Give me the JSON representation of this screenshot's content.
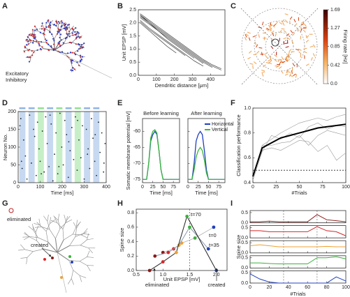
{
  "chart_data": [
    {
      "type": "illustration",
      "panel_label": "A",
      "legend": [
        {
          "name": "Excitatory",
          "color": "#2b3bbf"
        },
        {
          "name": "Inhibitory",
          "color": "#d42a2a"
        }
      ]
    },
    {
      "type": "line",
      "panel_label": "B",
      "xlabel": "Dendritic distance [μm]",
      "ylabel": "Unit EPSP [mV]",
      "xlim": [
        0,
        480
      ],
      "ylim": [
        0,
        2.5
      ],
      "xticks": [
        0,
        100,
        200,
        300,
        400
      ],
      "yticks": [
        {
          "value": 0,
          "label": "0.0"
        },
        0.5,
        {
          "value": 1,
          "label": "1.0"
        },
        1.5,
        {
          "value": 2,
          "label": "2.0"
        },
        2.5
      ],
      "color": "#222",
      "x": [
        10,
        60,
        110,
        160,
        210,
        260,
        310,
        360,
        410,
        460
      ],
      "series": [
        {
          "values": [
            2.3,
            2.0,
            1.75,
            1.5,
            1.25,
            1.0,
            0.75,
            0.5,
            0.3,
            null
          ]
        },
        {
          "values": [
            2.2,
            1.95,
            1.7,
            1.45,
            1.2,
            0.95,
            0.7,
            0.45,
            null,
            null
          ]
        },
        {
          "values": [
            2.35,
            2.1,
            1.85,
            1.6,
            1.35,
            1.1,
            0.85,
            0.6,
            0.4,
            0.25
          ]
        },
        {
          "values": [
            2.1,
            1.8,
            1.55,
            1.3,
            1.05,
            0.8,
            0.55,
            0.35,
            null,
            null
          ]
        },
        {
          "values": [
            2.25,
            2.0,
            1.7,
            1.4,
            1.15,
            0.9,
            0.65,
            null,
            null,
            null
          ]
        },
        {
          "values": [
            2.05,
            1.75,
            1.5,
            1.25,
            1.0,
            0.75,
            null,
            null,
            null,
            null
          ]
        },
        {
          "values": [
            2.3,
            2.05,
            1.8,
            1.55,
            1.3,
            1.05,
            0.8,
            0.55,
            0.35,
            0.2
          ]
        },
        {
          "values": [
            2.0,
            1.7,
            1.4,
            1.1,
            0.85,
            null,
            null,
            null,
            null,
            null
          ]
        }
      ]
    },
    {
      "type": "illustration",
      "panel_label": "C",
      "colorbar": {
        "label": "Firing rate [Hz]",
        "lim": [
          0,
          1.69
        ],
        "ticks": [
          {
            "value": 0,
            "label": "0.0"
          },
          0.42,
          0.85,
          1.27,
          1.69
        ]
      }
    },
    {
      "type": "raster",
      "panel_label": "D",
      "xlabel": "Time [ms]",
      "ylabel": "Neuron No.",
      "xlim": [
        0,
        400
      ],
      "ylim": [
        0,
        200
      ],
      "xticks": [
        0,
        100,
        200,
        300,
        400
      ],
      "yticks": [
        0,
        50,
        100,
        150,
        200
      ],
      "stimuli": [
        {
          "start": 5,
          "end": 33,
          "color": "#8fb3e3"
        },
        {
          "start": 47,
          "end": 75,
          "color": "#8fb3e3"
        },
        {
          "start": 89,
          "end": 117,
          "color": "#8fe08f"
        },
        {
          "start": 131,
          "end": 159,
          "color": "#8fb3e3"
        },
        {
          "start": 173,
          "end": 201,
          "color": "#8fe08f"
        },
        {
          "start": 215,
          "end": 243,
          "color": "#8fb3e3"
        },
        {
          "start": 257,
          "end": 285,
          "color": "#8fe08f"
        },
        {
          "start": 299,
          "end": 327,
          "color": "#8fb3e3"
        },
        {
          "start": 341,
          "end": 369,
          "color": "#8fb3e3"
        }
      ],
      "spikes": {
        "x": [
          12,
          18,
          25,
          33,
          8,
          40,
          52,
          60,
          75,
          82,
          88,
          95,
          100,
          110,
          118,
          125,
          132,
          140,
          150,
          158,
          165,
          172,
          180,
          190,
          198,
          205,
          212,
          220,
          228,
          236,
          244,
          252,
          260,
          268,
          276,
          285,
          292,
          300,
          310,
          318,
          325,
          333,
          340,
          348,
          356,
          365,
          372,
          380,
          388,
          395,
          15,
          70,
          105,
          145,
          185,
          230,
          270,
          315,
          350,
          390
        ],
        "y": [
          180,
          40,
          120,
          75,
          160,
          10,
          190,
          55,
          130,
          20,
          170,
          95,
          60,
          145,
          30,
          185,
          110,
          45,
          165,
          5,
          80,
          140,
          25,
          195,
          100,
          50,
          175,
          135,
          15,
          90,
          155,
          65,
          185,
          35,
          120,
          70,
          160,
          10,
          150,
          95,
          40,
          180,
          125,
          60,
          20,
          170,
          85,
          140,
          30,
          110,
          60,
          150,
          25,
          190,
          45,
          115,
          175,
          80,
          135,
          55
        ]
      }
    },
    {
      "type": "line",
      "panel_label": "E",
      "ylabel": "Somatic membrane potential [mV]",
      "xlim": [
        0,
        90
      ],
      "ylim": [
        -76,
        -56
      ],
      "xticks": [
        0,
        25,
        50,
        75
      ],
      "yticks": [
        -75,
        -70,
        -65,
        -60
      ],
      "subplots": [
        {
          "title": "Before learning",
          "xlabel": "Time [ms]",
          "x": [
            0,
            10,
            15,
            20,
            25,
            30,
            35,
            40,
            45,
            50,
            60,
            75,
            90
          ],
          "series": [
            {
              "color": "#1f3fbf",
              "values": [
                -75,
                -75,
                -70,
                -63,
                -61,
                -60,
                -61,
                -66,
                -72,
                -75,
                -75,
                -75,
                -75
              ]
            },
            {
              "color": "#3cb83c",
              "values": [
                -75,
                -75,
                -70,
                -62,
                -60,
                -59.5,
                -60.5,
                -66,
                -72,
                -75,
                -75,
                -75,
                -75
              ]
            }
          ]
        },
        {
          "title": "After learning",
          "xlabel": "Time [ms]",
          "x": [
            0,
            10,
            15,
            20,
            25,
            30,
            35,
            40,
            45,
            50,
            60,
            75,
            90
          ],
          "series": [
            {
              "name": "Horizontal",
              "color": "#1f3fbf",
              "values": [
                -75,
                -75,
                -70,
                -63,
                -61,
                -60,
                -61,
                -66,
                -72,
                -75,
                -75,
                -75,
                -75
              ]
            },
            {
              "name": "Vertical",
              "color": "#3cb83c",
              "values": [
                -75,
                -75,
                -72,
                -68,
                -66,
                -65,
                -66,
                -69,
                -73,
                -75,
                -75,
                -75,
                -75
              ]
            }
          ]
        }
      ]
    },
    {
      "type": "line",
      "panel_label": "F",
      "xlabel": "#Trials",
      "ylabel": "Classification performance",
      "xlim": [
        0,
        100
      ],
      "ylim": [
        0.4,
        1.0
      ],
      "xticks": [
        0,
        25,
        50,
        75,
        100
      ],
      "yticks": [
        0.4,
        0.6,
        0.8,
        {
          "value": 1,
          "label": "1.0"
        }
      ],
      "baseline": 0.5,
      "x": [
        0,
        10,
        20,
        30,
        40,
        50,
        60,
        70,
        80,
        90,
        100
      ],
      "series": [
        {
          "color": "#999999",
          "values": [
            0.45,
            0.7,
            0.75,
            0.8,
            0.84,
            0.88,
            0.9,
            0.92,
            0.9,
            0.93,
            0.95
          ]
        },
        {
          "color": "#999999",
          "values": [
            0.42,
            0.65,
            0.78,
            0.75,
            0.8,
            0.76,
            0.85,
            0.88,
            0.83,
            0.86,
            0.85
          ]
        },
        {
          "color": "#999999",
          "values": [
            0.44,
            0.7,
            0.7,
            0.72,
            0.73,
            0.78,
            0.7,
            0.78,
            0.82,
            0.8,
            0.78
          ]
        },
        {
          "color": "#999999",
          "values": [
            0.46,
            0.66,
            0.68,
            0.66,
            0.7,
            0.74,
            0.73,
            0.65,
            0.7,
            0.58,
            0.64
          ]
        },
        {
          "color": "#000000",
          "values": [
            0.45,
            0.68,
            0.72,
            0.76,
            0.78,
            0.8,
            0.82,
            0.84,
            0.85,
            0.86,
            0.87
          ]
        }
      ]
    },
    {
      "type": "illustration",
      "panel_label": "G",
      "annotations": [
        "eliminated",
        "created"
      ]
    },
    {
      "type": "scatter",
      "panel_label": "H",
      "xlabel": "Unit EPSP [mV]",
      "ylabel": "Spine size",
      "xlim": [
        0.5,
        2.2
      ],
      "ylim": [
        0,
        0.85
      ],
      "xticks": [
        0.5,
        {
          "value": 1,
          "label": "1.0"
        },
        1.5,
        {
          "value": 2,
          "label": "2.0"
        }
      ],
      "yticks": [
        {
          "value": 0,
          "label": "0.0"
        },
        0.2,
        0.4,
        0.6,
        0.8
      ],
      "vline": 1.5,
      "spine_colors": [
        "#8b1a1a",
        "#d62728",
        "#f0a030",
        "#3cb03c",
        "#2040c0"
      ],
      "series": [
        {
          "name": "t=0",
          "color": "#bbbbbb",
          "x": [
            1.0,
            1.2,
            1.35,
            1.6,
            1.95
          ],
          "values": [
            0.25,
            0.3,
            0.38,
            0.45,
            0.6
          ]
        },
        {
          "name": "t=35",
          "color": "#8a9ab0",
          "x": [
            0.85,
            1.1,
            1.3,
            1.5,
            1.85
          ],
          "values": [
            0.2,
            0.25,
            0.35,
            0.6,
            0.3
          ]
        },
        {
          "name": "t=70",
          "color": "#222222",
          "x": [
            0.75,
            1.0,
            1.25,
            1.45,
            2.0
          ],
          "values": [
            0.0,
            0.12,
            0.25,
            0.75,
            0.0
          ]
        }
      ],
      "annotations": [
        "eliminated",
        "created"
      ]
    },
    {
      "type": "line",
      "panel_label": "I",
      "xlabel": "#Trials",
      "ylabel": "Spine size",
      "xlim": [
        0,
        100
      ],
      "ylim": [
        0,
        0.6
      ],
      "xticks": [
        0,
        20,
        40,
        60,
        80,
        100
      ],
      "yticks": [
        {
          "value": 0,
          "label": "0.0"
        },
        0.5
      ],
      "vlines": [
        35,
        70
      ],
      "x": [
        0,
        10,
        20,
        30,
        40,
        50,
        60,
        70,
        80,
        90,
        100
      ],
      "series": [
        {
          "color": "#8b1a1a",
          "values": [
            0.05,
            0.05,
            0.08,
            0.05,
            0.05,
            0.05,
            0.05,
            0.4,
            0.15,
            0.1,
            0.05
          ]
        },
        {
          "color": "#d62728",
          "values": [
            0.35,
            0.35,
            0.3,
            0.3,
            0.3,
            0.3,
            0.3,
            0.55,
            0.35,
            0.3,
            0.1
          ]
        },
        {
          "color": "#f0a030",
          "values": [
            0.35,
            0.4,
            0.35,
            0.3,
            0.3,
            0.3,
            0.3,
            0.3,
            0.32,
            0.3,
            0.3
          ]
        },
        {
          "color": "#3cb03c",
          "values": [
            0.25,
            0.25,
            0.22,
            0.2,
            0.2,
            0.2,
            0.2,
            0.5,
            0.5,
            0.55,
            0.45
          ]
        },
        {
          "color": "#2040c0",
          "values": [
            0.45,
            0.2,
            0.05,
            0.0,
            0.0,
            0.0,
            0.0,
            0.0,
            0.0,
            0.3,
            0.1
          ]
        }
      ]
    }
  ]
}
